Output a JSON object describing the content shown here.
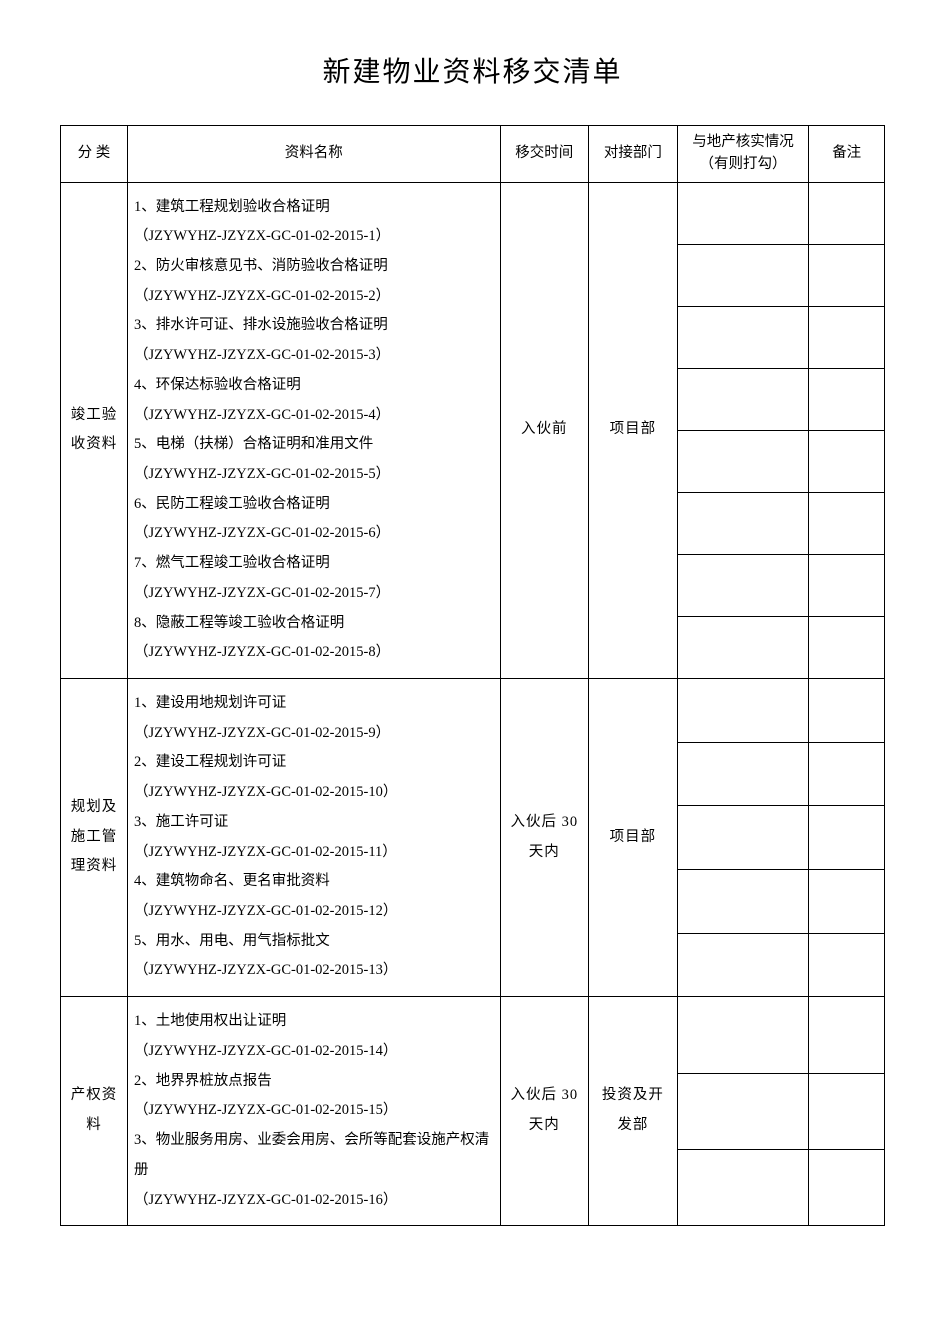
{
  "title": "新建物业资料移交清单",
  "headers": {
    "category": "分 类",
    "name": "资料名称",
    "time": "移交时间",
    "dept": "对接部门",
    "check": "与地产核实情况（有则打勾）",
    "note": "备注"
  },
  "groups": [
    {
      "category": "竣工验收资料",
      "content": "1、建筑工程规划验收合格证明\n（JZYWYHZ-JZYZX-GC-01-02-2015-1）\n2、防火审核意见书、消防验收合格证明\n（JZYWYHZ-JZYZX-GC-01-02-2015-2）\n3、排水许可证、排水设施验收合格证明\n（JZYWYHZ-JZYZX-GC-01-02-2015-3）\n4、环保达标验收合格证明\n（JZYWYHZ-JZYZX-GC-01-02-2015-4）\n5、电梯（扶梯）合格证明和准用文件\n（JZYWYHZ-JZYZX-GC-01-02-2015-5）\n6、民防工程竣工验收合格证明\n（JZYWYHZ-JZYZX-GC-01-02-2015-6）\n7、燃气工程竣工验收合格证明\n（JZYWYHZ-JZYZX-GC-01-02-2015-7）\n8、隐蔽工程等竣工验收合格证明\n（JZYWYHZ-JZYZX-GC-01-02-2015-8）",
      "time": "入伙前",
      "dept": "项目部",
      "item_count": 8
    },
    {
      "category": "规划及施工管理资料",
      "content": "1、建设用地规划许可证\n（JZYWYHZ-JZYZX-GC-01-02-2015-9）\n2、建设工程规划许可证\n（JZYWYHZ-JZYZX-GC-01-02-2015-10）\n3、施工许可证\n（JZYWYHZ-JZYZX-GC-01-02-2015-11）\n4、建筑物命名、更名审批资料\n（JZYWYHZ-JZYZX-GC-01-02-2015-12）\n5、用水、用电、用气指标批文\n（JZYWYHZ-JZYZX-GC-01-02-2015-13）",
      "time": "入伙后 30天内",
      "dept": "项目部",
      "item_count": 5
    },
    {
      "category": "产权资料",
      "content": "1、土地使用权出让证明\n（JZYWYHZ-JZYZX-GC-01-02-2015-14）\n2、地界界桩放点报告\n（JZYWYHZ-JZYZX-GC-01-02-2015-15）\n3、物业服务用房、业委会用房、会所等配套设施产权清册\n（JZYWYHZ-JZYZX-GC-01-02-2015-16）",
      "time": "入伙后 30天内",
      "dept": "投资及开发部",
      "item_count": 3
    }
  ],
  "style": {
    "page_bg": "#ffffff",
    "text_color": "#000000",
    "border_color": "#000000",
    "title_fontsize": 28,
    "body_fontsize": 14.5,
    "line_height": 2.05,
    "font_family": "SimSun"
  }
}
